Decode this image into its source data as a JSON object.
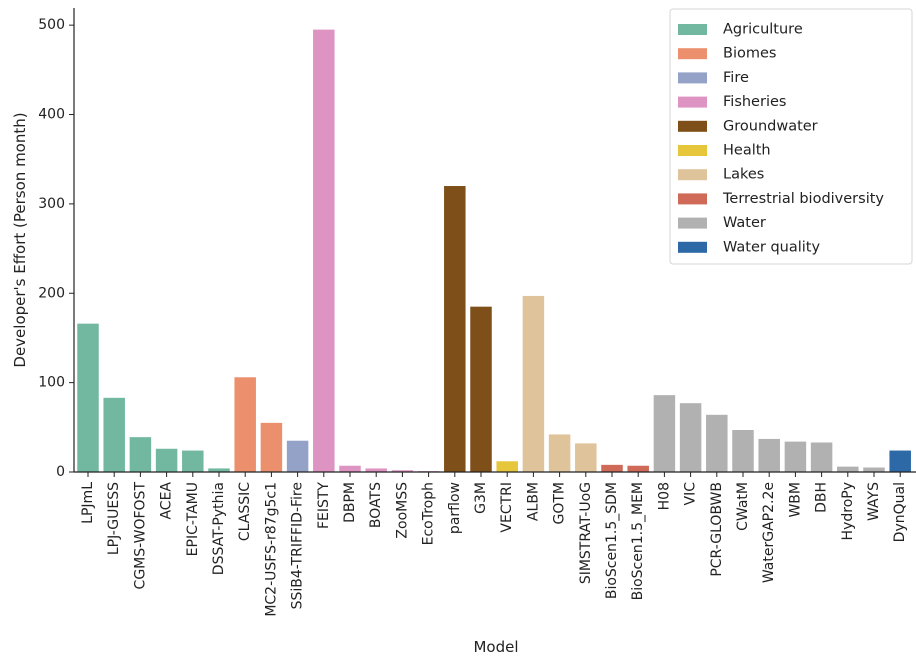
{
  "chart_data": {
    "type": "bar",
    "title": "",
    "xlabel": "Model",
    "ylabel": "Developer's Effort (Person month)",
    "ylim": [
      0,
      520
    ],
    "yticks": [
      0,
      100,
      200,
      300,
      400,
      500
    ],
    "grid": false,
    "legend_position": "top-right",
    "categories": [
      "LPJmL",
      "LPJ-GUESS",
      "CGMS-WOFOST",
      "ACEA",
      "EPIC-TAMU",
      "DSSAT-Pythia",
      "CLASSIC",
      "MC2-USFS-r87g5c1",
      "SSiB4-TRIFFID-Fire",
      "FEISTY",
      "DBPM",
      "BOATS",
      "ZooMSS",
      "EcoTroph",
      "parflow",
      "G3M",
      "VECTRI",
      "ALBM",
      "GOTM",
      "SIMSTRAT-UoG",
      "BioScen1.5_SDM",
      "BioScen1.5_MEM",
      "H08",
      "VIC",
      "PCR-GLOBWB",
      "CWatM",
      "WaterGAP2.2e",
      "WBM",
      "DBH",
      "HydroPy",
      "WAYS",
      "DynQual"
    ],
    "values": [
      166,
      83,
      39,
      26,
      24,
      4,
      106,
      55,
      35,
      495,
      7,
      4,
      2,
      1,
      320,
      185,
      12,
      197,
      42,
      32,
      8,
      7,
      86,
      77,
      64,
      47,
      37,
      34,
      33,
      6,
      5,
      24
    ],
    "groups": [
      "Agriculture",
      "Agriculture",
      "Agriculture",
      "Agriculture",
      "Agriculture",
      "Agriculture",
      "Biomes",
      "Biomes",
      "Fire",
      "Fisheries",
      "Fisheries",
      "Fisheries",
      "Fisheries",
      "Fisheries",
      "Groundwater",
      "Groundwater",
      "Health",
      "Lakes",
      "Lakes",
      "Lakes",
      "Terrestrial biodiversity",
      "Terrestrial biodiversity",
      "Water",
      "Water",
      "Water",
      "Water",
      "Water",
      "Water",
      "Water",
      "Water",
      "Water",
      "Water quality"
    ],
    "legend": [
      {
        "name": "Agriculture",
        "color": "#72b8a0"
      },
      {
        "name": "Biomes",
        "color": "#eb8f6c"
      },
      {
        "name": "Fire",
        "color": "#94a2c8"
      },
      {
        "name": "Fisheries",
        "color": "#de94c3"
      },
      {
        "name": "Groundwater",
        "color": "#7e4f18"
      },
      {
        "name": "Health",
        "color": "#e6c63a"
      },
      {
        "name": "Lakes",
        "color": "#dfc39a"
      },
      {
        "name": "Terrestrial biodiversity",
        "color": "#cf6a58"
      },
      {
        "name": "Water",
        "color": "#b1b1b1"
      },
      {
        "name": "Water quality",
        "color": "#2c69a6"
      }
    ]
  }
}
